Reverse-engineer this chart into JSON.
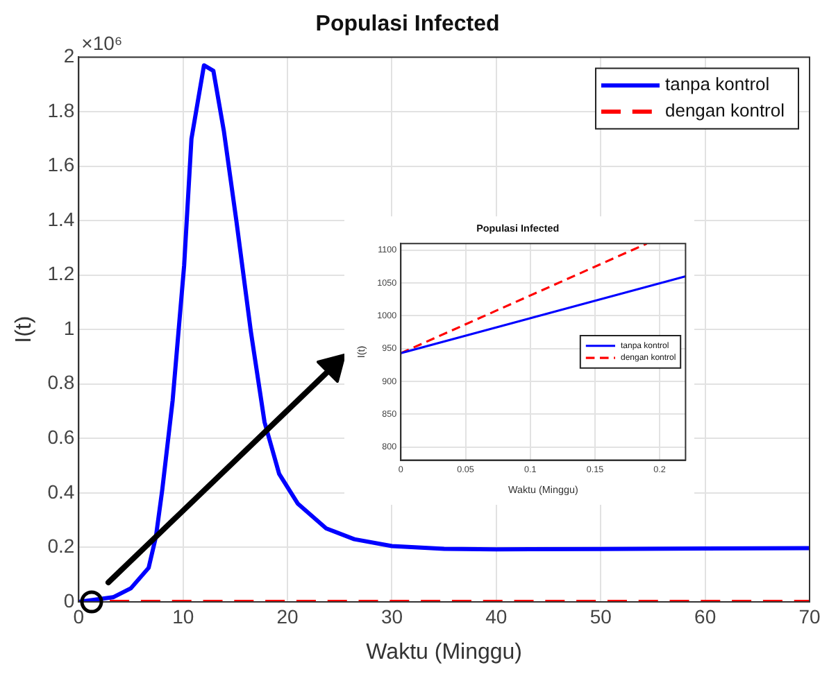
{
  "chart_data": [
    {
      "type": "line",
      "title": "Populasi Infected",
      "xlabel": "Waktu (Minggu)",
      "ylabel": "I(t)",
      "xlim": [
        0,
        70
      ],
      "xticks": [
        0,
        10,
        20,
        30,
        40,
        50,
        60,
        70
      ],
      "ylim": [
        0,
        2
      ],
      "yticks": [
        0,
        0.2,
        0.4,
        0.6,
        0.8,
        1,
        1.2,
        1.4,
        1.6,
        1.8,
        2
      ],
      "grid": true,
      "legend": "top right",
      "marker": "none",
      "annotations": [
        "×10⁶"
      ],
      "series": [
        {
          "name": "tanpa kontrol",
          "color": "#0000ff",
          "line_style": "solid",
          "x": [
            0,
            3.3,
            5,
            6.7,
            7.4,
            8,
            9,
            10.1,
            10.8,
            12,
            12.9,
            13.9,
            15.1,
            16.5,
            17.8,
            19.2,
            21,
            23.7,
            26.4,
            30,
            35,
            40,
            50,
            60,
            70
          ],
          "values": [
            0,
            0.017,
            0.05,
            0.125,
            0.24,
            0.41,
            0.74,
            1.235,
            1.7,
            1.97,
            1.95,
            1.73,
            1.4,
            0.99,
            0.66,
            0.47,
            0.36,
            0.27,
            0.23,
            0.205,
            0.195,
            0.193,
            0.194,
            0.196,
            0.197
          ]
        },
        {
          "name": "dengan kontrol",
          "color": "#ff0000",
          "line_style": "dashed",
          "x": [
            0,
            70
          ],
          "values": [
            0,
            0
          ]
        }
      ]
    },
    {
      "type": "line",
      "title": "Populasi Infected",
      "xlabel": "Waktu (Minggu)",
      "ylabel": "I(t)",
      "xlim": [
        0,
        0.22
      ],
      "xticks": [
        0,
        0.05,
        0.1,
        0.15,
        0.2
      ],
      "ylim": [
        780,
        1110
      ],
      "yticks": [
        800,
        850,
        900,
        950,
        1000,
        1050,
        1100
      ],
      "grid": true,
      "legend": "right",
      "marker": "none",
      "series": [
        {
          "name": "tanpa kontrol",
          "color": "#0000ff",
          "line_style": "solid",
          "x": [
            0,
            0.22
          ],
          "values": [
            943,
            1060
          ]
        },
        {
          "name": "dengan kontrol",
          "color": "#ff0000",
          "line_style": "dashed",
          "x": [
            0,
            0.19
          ],
          "values": [
            943,
            1110
          ]
        }
      ]
    }
  ]
}
